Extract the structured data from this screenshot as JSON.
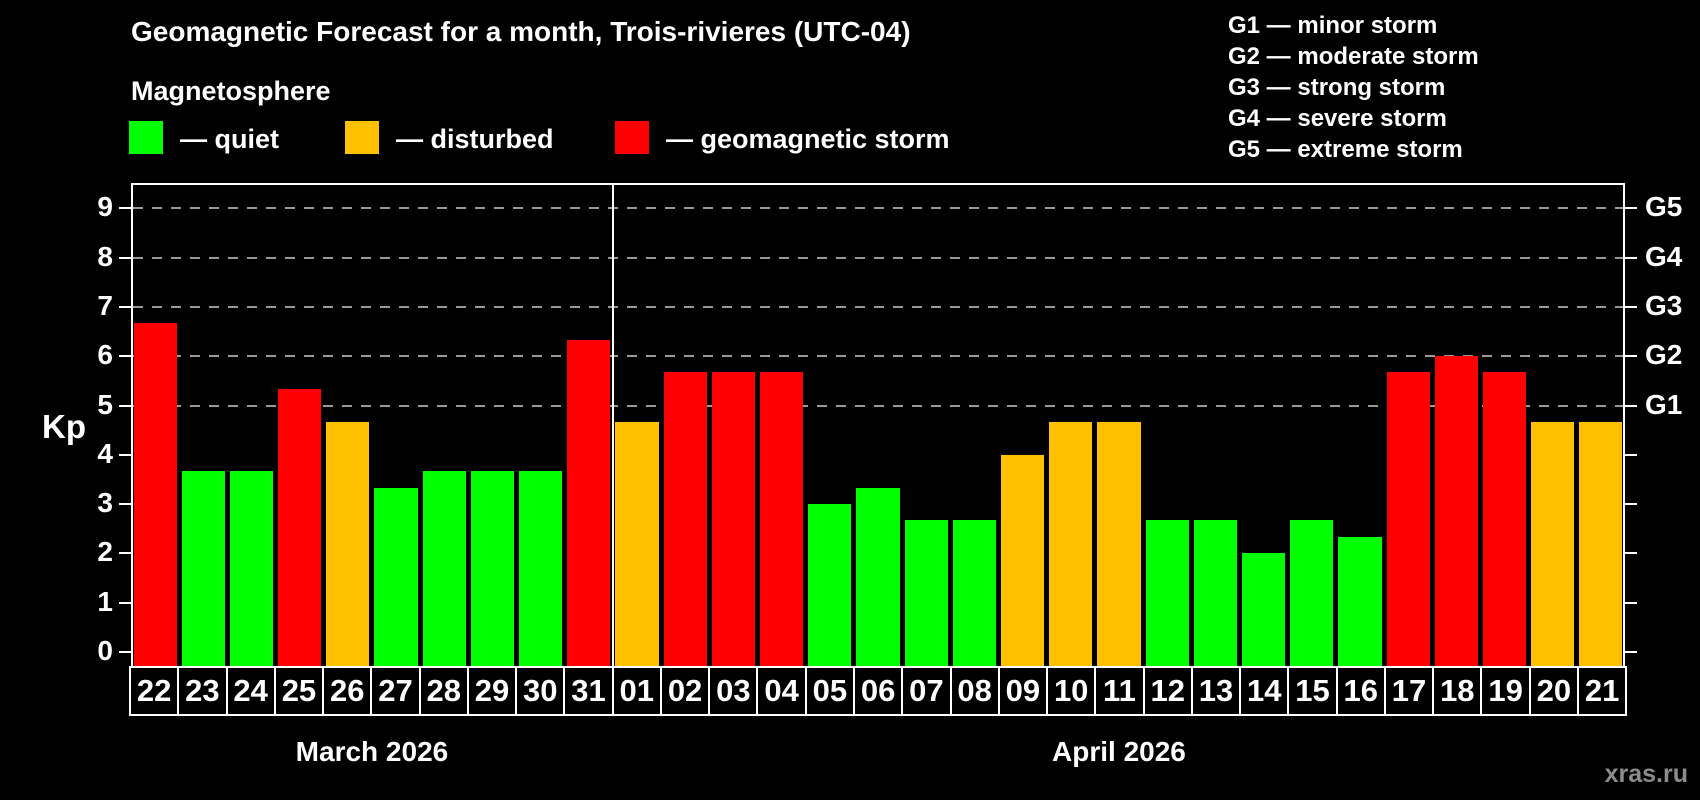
{
  "title": "Geomagnetic Forecast for a month, Trois-rivieres (UTC-04)",
  "subtitle": "Magnetosphere",
  "legend": {
    "items": [
      {
        "name": "quiet",
        "label": "— quiet",
        "status": "quiet"
      },
      {
        "name": "disturbed",
        "label": "— disturbed",
        "status": "disturbed"
      },
      {
        "name": "geomagnetic-storm",
        "label": "— geomagnetic storm",
        "status": "storm"
      }
    ]
  },
  "g_scale_legend": [
    "G1 — minor storm",
    "G2 — moderate storm",
    "G3 — strong storm",
    "G4 — severe storm",
    "G5 — extreme storm"
  ],
  "watermark": "xras.ru",
  "colors": {
    "background": "#000000",
    "quiet": "#00ff00",
    "disturbed": "#ffc000",
    "storm": "#ff0000",
    "grid": "#999999",
    "axis": "#ffffff",
    "watermark": "#8c8c8c"
  },
  "chart_data": {
    "type": "bar",
    "title": "Geomagnetic Forecast for a month, Trois-rivieres (UTC-04)",
    "xlabel": "",
    "ylabel": "Kp",
    "ylim": [
      0,
      9
    ],
    "yticks": [
      0,
      1,
      2,
      3,
      4,
      5,
      6,
      7,
      8,
      9
    ],
    "grid": "horizontal dashed lines at Kp 5-9 only",
    "legend_position": "top",
    "right_axis": {
      "labels": [
        {
          "label": "G1",
          "kp": 5
        },
        {
          "label": "G2",
          "kp": 6
        },
        {
          "label": "G3",
          "kp": 7
        },
        {
          "label": "G4",
          "kp": 8
        },
        {
          "label": "G5",
          "kp": 9
        }
      ],
      "ticks": [
        0,
        1,
        2,
        3,
        4,
        5,
        6,
        7,
        8,
        9
      ]
    },
    "month_groups": [
      {
        "label": "March 2026",
        "start": 0,
        "count": 10
      },
      {
        "label": "April 2026",
        "start": 10,
        "count": 21
      }
    ],
    "categories": [
      "22",
      "23",
      "24",
      "25",
      "26",
      "27",
      "28",
      "29",
      "30",
      "31",
      "01",
      "02",
      "03",
      "04",
      "05",
      "06",
      "07",
      "08",
      "09",
      "10",
      "11",
      "12",
      "13",
      "14",
      "15",
      "16",
      "17",
      "18",
      "19",
      "20",
      "21"
    ],
    "values": [
      6.67,
      3.67,
      3.67,
      5.33,
      4.67,
      3.33,
      3.67,
      3.67,
      3.67,
      6.33,
      4.67,
      5.67,
      5.67,
      5.67,
      3.0,
      3.33,
      2.67,
      2.67,
      4.0,
      4.67,
      4.67,
      2.67,
      2.67,
      2.0,
      2.67,
      2.33,
      5.67,
      6.0,
      5.67,
      4.67,
      4.67
    ],
    "statuses": [
      "storm",
      "quiet",
      "quiet",
      "storm",
      "disturbed",
      "quiet",
      "quiet",
      "quiet",
      "quiet",
      "storm",
      "disturbed",
      "storm",
      "storm",
      "storm",
      "quiet",
      "quiet",
      "quiet",
      "quiet",
      "disturbed",
      "disturbed",
      "disturbed",
      "quiet",
      "quiet",
      "quiet",
      "quiet",
      "quiet",
      "storm",
      "storm",
      "storm",
      "disturbed",
      "disturbed"
    ]
  }
}
